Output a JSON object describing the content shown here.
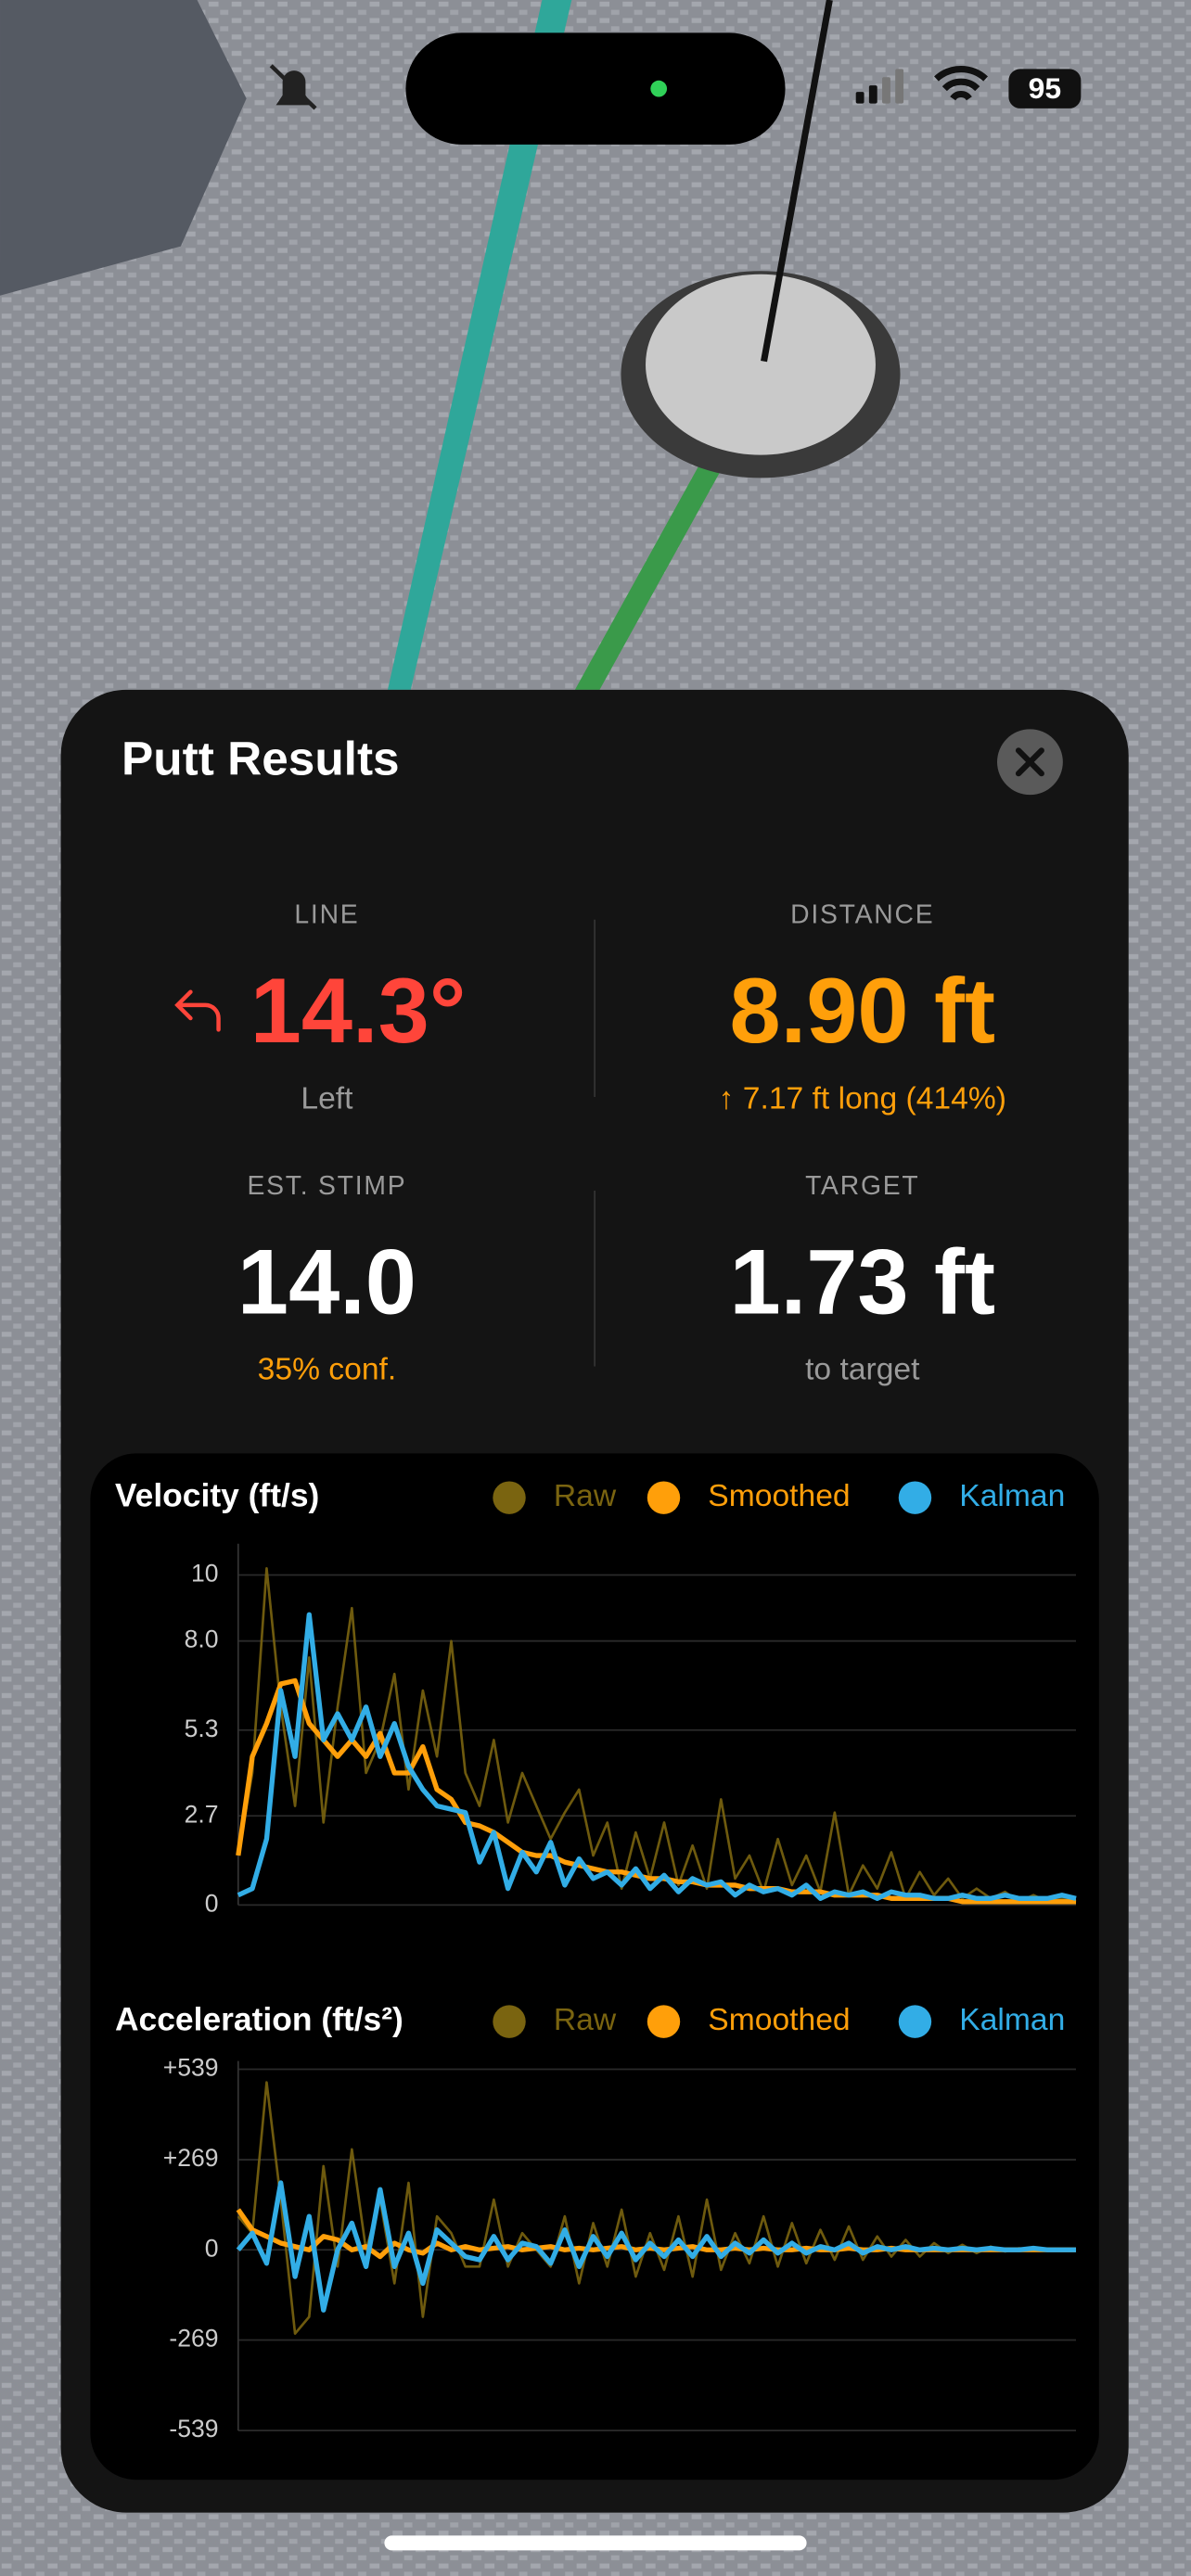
{
  "status_bar": {
    "battery": "95"
  },
  "panel": {
    "title": "Putt Results",
    "stats": [
      {
        "label": "LINE",
        "value": "14.3°",
        "sub": "Left"
      },
      {
        "label": "DISTANCE",
        "value": "8.90 ft",
        "sub": "↑ 7.17 ft long (414%)"
      },
      {
        "label": "EST. STIMP",
        "value": "14.0",
        "sub": "35% conf."
      },
      {
        "label": "TARGET",
        "value": "1.73 ft",
        "sub": "to target"
      }
    ]
  },
  "chart_data": [
    {
      "type": "line",
      "title": "Velocity (ft/s)",
      "ylim": [
        0,
        10.7
      ],
      "yticks": [
        0,
        2.7,
        5.3,
        {
          "value": 8,
          "label": "8.0"
        },
        10
      ],
      "grid": true,
      "series": [
        {
          "name": "Raw",
          "color": "#7a6410",
          "values": [
            1.5,
            4,
            10.2,
            6,
            3,
            7.5,
            2.5,
            6,
            9,
            4,
            5,
            7,
            3.5,
            6.5,
            4.5,
            8,
            4,
            3,
            5,
            2.5,
            4,
            3,
            2,
            2.8,
            3.5,
            1.5,
            2.5,
            0.5,
            2.2,
            0.8,
            2.5,
            0.6,
            1.8,
            0.5,
            3.2,
            0.8,
            1.5,
            0.4,
            2.0,
            0.6,
            1.5,
            0.4,
            2.8,
            0.3,
            1.2,
            0.5,
            1.6,
            0.2,
            1.0,
            0.3,
            0.8,
            0.2,
            0.5,
            0.2,
            0.4,
            0.1,
            0.3,
            0.1,
            0.2,
            0.1
          ]
        },
        {
          "name": "Smoothed",
          "color": "#ff9f0a",
          "values": [
            1.5,
            4.5,
            5.5,
            6.7,
            6.8,
            5.5,
            5,
            4.5,
            5,
            4.5,
            5.2,
            4,
            4,
            4.8,
            3.5,
            3.2,
            2.5,
            2.4,
            2.2,
            1.9,
            1.6,
            1.5,
            1.5,
            1.3,
            1.2,
            1.1,
            1.0,
            1.0,
            0.9,
            0.8,
            0.8,
            0.7,
            0.7,
            0.6,
            0.6,
            0.6,
            0.5,
            0.5,
            0.5,
            0.4,
            0.4,
            0.4,
            0.3,
            0.3,
            0.3,
            0.3,
            0.2,
            0.2,
            0.2,
            0.2,
            0.2,
            0.1,
            0.1,
            0.1,
            0.1,
            0.1,
            0.1,
            0.1,
            0.1,
            0.1
          ]
        },
        {
          "name": "Kalman",
          "color": "#32ade6",
          "values": [
            0.3,
            0.5,
            2,
            6.5,
            4.5,
            8.8,
            5,
            5.8,
            5,
            6,
            4.5,
            5.5,
            4.2,
            3.5,
            3,
            2.9,
            2.8,
            1.3,
            2.2,
            0.5,
            1.6,
            1.0,
            1.9,
            0.6,
            1.4,
            0.8,
            1.0,
            0.6,
            1.1,
            0.5,
            0.9,
            0.4,
            0.8,
            0.6,
            0.7,
            0.3,
            0.6,
            0.4,
            0.5,
            0.3,
            0.6,
            0.2,
            0.4,
            0.3,
            0.4,
            0.2,
            0.4,
            0.3,
            0.3,
            0.2,
            0.2,
            0.3,
            0.2,
            0.2,
            0.3,
            0.2,
            0.2,
            0.2,
            0.3,
            0.2
          ]
        }
      ]
    },
    {
      "type": "line",
      "title": "Acceleration (ft/s²)",
      "ylim": [
        -539,
        539
      ],
      "yticks": [
        -539,
        -269,
        0,
        {
          "value": 269,
          "label": "+269"
        },
        {
          "value": 539,
          "label": "+539"
        }
      ],
      "grid": true,
      "series": [
        {
          "name": "Raw",
          "color": "#7a6410",
          "values": [
            100,
            50,
            500,
            150,
            -250,
            -200,
            250,
            -50,
            300,
            0,
            150,
            -100,
            200,
            -200,
            100,
            50,
            -50,
            -50,
            150,
            -50,
            50,
            0,
            -50,
            100,
            -100,
            80,
            -50,
            120,
            -80,
            50,
            -60,
            100,
            -80,
            150,
            -60,
            50,
            -40,
            100,
            -50,
            80,
            -40,
            60,
            -30,
            70,
            -30,
            40,
            -20,
            30,
            -20,
            20,
            -10,
            15,
            -10,
            10,
            -5,
            5,
            0,
            0,
            0,
            0
          ]
        },
        {
          "name": "Smoothed",
          "color": "#ff9f0a",
          "values": [
            120,
            60,
            40,
            20,
            10,
            0,
            40,
            30,
            0,
            10,
            -20,
            20,
            0,
            -10,
            20,
            0,
            10,
            0,
            5,
            10,
            0,
            5,
            10,
            0,
            5,
            0,
            5,
            10,
            0,
            5,
            0,
            5,
            10,
            0,
            0,
            5,
            0,
            5,
            0,
            0,
            5,
            0,
            0,
            5,
            0,
            0,
            5,
            0,
            0,
            0,
            0,
            0,
            0,
            0,
            0,
            0,
            0,
            0,
            0,
            0
          ]
        },
        {
          "name": "Kalman",
          "color": "#32ade6",
          "values": [
            0,
            50,
            -40,
            200,
            -80,
            100,
            -180,
            0,
            80,
            -50,
            180,
            -50,
            50,
            -100,
            60,
            20,
            -20,
            -30,
            40,
            -30,
            20,
            10,
            -40,
            60,
            -50,
            40,
            -20,
            50,
            -30,
            20,
            -20,
            30,
            -20,
            40,
            -20,
            20,
            -10,
            30,
            -10,
            20,
            -10,
            10,
            0,
            20,
            -10,
            10,
            0,
            10,
            0,
            5,
            0,
            5,
            0,
            5,
            0,
            0,
            5,
            0,
            0,
            0
          ]
        }
      ]
    }
  ]
}
